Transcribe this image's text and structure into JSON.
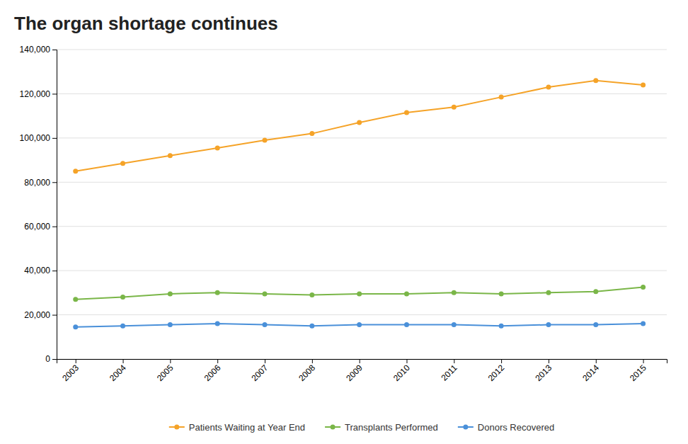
{
  "chart_data": {
    "type": "line",
    "title": "The organ shortage continues",
    "x": [
      2003,
      2004,
      2005,
      2006,
      2007,
      2008,
      2009,
      2010,
      2011,
      2012,
      2013,
      2014,
      2015
    ],
    "series": [
      {
        "name": "Patients Waiting at Year End",
        "color": "#f5a328",
        "marker": "circle",
        "values": [
          85000,
          88500,
          92000,
          95500,
          99000,
          102000,
          107000,
          111500,
          114000,
          118500,
          123000,
          126000,
          124000
        ]
      },
      {
        "name": "Transplants Performed",
        "color": "#7ab648",
        "marker": "circle",
        "values": [
          27000,
          28000,
          29500,
          30000,
          29500,
          29000,
          29500,
          29500,
          30000,
          29500,
          30000,
          30500,
          32500
        ]
      },
      {
        "name": "Donors Recovered",
        "color": "#4a90d9",
        "marker": "circle",
        "values": [
          14500,
          15000,
          15500,
          16000,
          15500,
          15000,
          15500,
          15500,
          15500,
          15000,
          15500,
          15500,
          16000
        ]
      }
    ],
    "xlim": [
      2002.6,
      2015.5
    ],
    "xticks": [
      2003,
      2004,
      2005,
      2006,
      2007,
      2008,
      2009,
      2010,
      2011,
      2012,
      2013,
      2014,
      2015
    ],
    "ylim": [
      0,
      140000
    ],
    "yticks": [
      0,
      {
        "value": 20000,
        "label": "20,000"
      },
      {
        "value": 40000,
        "label": "40,000"
      },
      {
        "value": 60000,
        "label": "60,000"
      },
      {
        "value": 80000,
        "label": "80,000"
      },
      {
        "value": 100000,
        "label": "100,000"
      },
      {
        "value": 120000,
        "label": "120,000"
      },
      {
        "value": 140000,
        "label": "140,000"
      }
    ],
    "grid": true,
    "legend": "bottom"
  }
}
